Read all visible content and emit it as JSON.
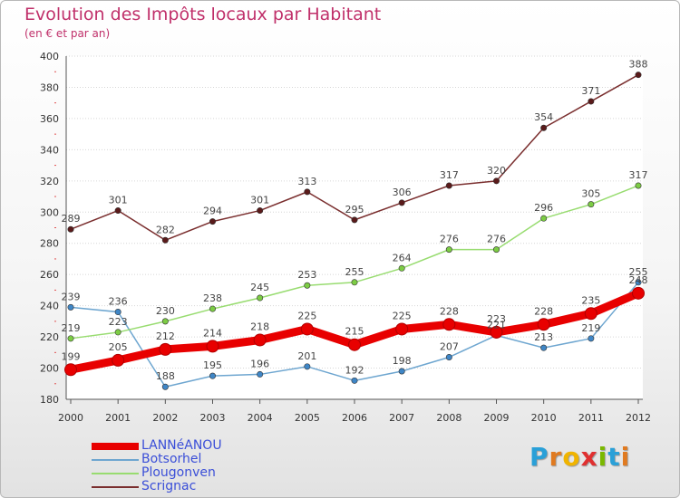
{
  "header": {
    "title": "Evolution des Impôts locaux par Habitant",
    "subtitle": "(en € et par an)"
  },
  "brand": {
    "letters": [
      "P",
      "r",
      "o",
      "x",
      "i",
      "t",
      "i"
    ],
    "colors": [
      "#2aa0d8",
      "#e07a20",
      "#f0b400",
      "#e03030",
      "#7ab800",
      "#2aa0d8",
      "#e07a20"
    ]
  },
  "chart_data": {
    "type": "line",
    "title": "Evolution des Impôts locaux par Habitant",
    "subtitle": "(en € et par an)",
    "x": [
      2000,
      2001,
      2002,
      2003,
      2004,
      2005,
      2006,
      2007,
      2008,
      2009,
      2010,
      2011,
      2012
    ],
    "x_tick_labels": [
      "2000",
      "2001",
      "2002",
      "2003",
      "2004",
      "2005",
      "2006",
      "2007",
      "2008",
      "2009",
      "2010",
      "2011",
      "2012"
    ],
    "ylim": [
      180,
      400
    ],
    "y_ticks": [
      180,
      200,
      220,
      240,
      260,
      280,
      300,
      320,
      340,
      360,
      380,
      400
    ],
    "y_tick_labels": [
      "180",
      "200",
      "220",
      "240",
      "260",
      "280",
      "300",
      "320",
      "340",
      "360",
      "380",
      "400"
    ],
    "grid": "horizontal",
    "legend_position": "bottom-left",
    "series": [
      {
        "name": "LANNéANOU",
        "color": "#e80000",
        "marker": "#e80000",
        "thick": true,
        "values": [
          199,
          205,
          212,
          214,
          218,
          225,
          215,
          225,
          228,
          223,
          228,
          235,
          248
        ],
        "labels": [
          "199",
          "205",
          "212",
          "214",
          "218",
          "225",
          "215",
          "225",
          "228",
          "223",
          "228",
          "235",
          "248"
        ]
      },
      {
        "name": "Botsorhel",
        "color": "#6ea6d0",
        "marker": "#3f86c6",
        "thick": false,
        "values": [
          239,
          236,
          188,
          195,
          196,
          201,
          192,
          198,
          207,
          221,
          213,
          219,
          255
        ],
        "labels": [
          "239",
          "236",
          "188",
          "195",
          "196",
          "201",
          "192",
          "198",
          "207",
          "221",
          "213",
          "219",
          "255"
        ]
      },
      {
        "name": "Plougonven",
        "color": "#98dc70",
        "marker": "#7ccc44",
        "thick": false,
        "values": [
          219,
          223,
          230,
          238,
          245,
          253,
          255,
          264,
          276,
          276,
          296,
          305,
          317
        ],
        "labels": [
          "219",
          "223",
          "230",
          "238",
          "245",
          "253",
          "255",
          "264",
          "276",
          "276",
          "296",
          "305",
          "317"
        ]
      },
      {
        "name": "Scrignac",
        "color": "#7a2e2e",
        "marker": "#5a1a1a",
        "thick": false,
        "values": [
          289,
          301,
          282,
          294,
          301,
          313,
          295,
          306,
          317,
          320,
          354,
          371,
          388
        ],
        "labels": [
          "289",
          "301",
          "282",
          "294",
          "301",
          "313",
          "295",
          "306",
          "317",
          "320",
          "354",
          "371",
          "388"
        ]
      }
    ]
  }
}
